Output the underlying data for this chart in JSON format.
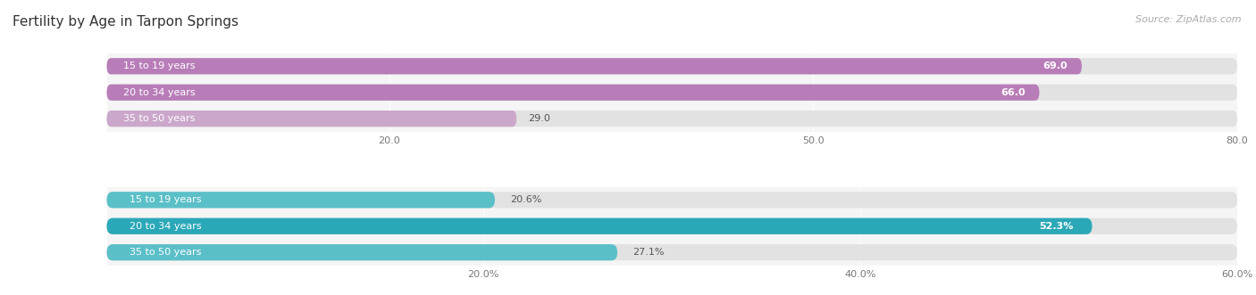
{
  "title": "Fertility by Age in Tarpon Springs",
  "source": "Source: ZipAtlas.com",
  "top_section": {
    "categories": [
      "15 to 19 years",
      "20 to 34 years",
      "35 to 50 years"
    ],
    "values": [
      69.0,
      66.0,
      29.0
    ],
    "bar_colors": [
      "#b87db8",
      "#b87db8",
      "#cba8cb"
    ],
    "xlim": [
      0,
      80
    ],
    "xticks": [
      20.0,
      50.0,
      80.0
    ],
    "value_labels": [
      "69.0",
      "66.0",
      "29.0"
    ],
    "value_inside": [
      true,
      true,
      false
    ]
  },
  "bottom_section": {
    "categories": [
      "15 to 19 years",
      "20 to 34 years",
      "35 to 50 years"
    ],
    "values": [
      20.6,
      52.3,
      27.1
    ],
    "bar_colors": [
      "#5bbfc8",
      "#2ba8b8",
      "#5bbfc8"
    ],
    "xlim": [
      0,
      60
    ],
    "xticks": [
      20.0,
      40.0,
      60.0
    ],
    "xtick_labels": [
      "20.0%",
      "40.0%",
      "60.0%"
    ],
    "value_labels": [
      "20.6%",
      "52.3%",
      "27.1%"
    ],
    "value_inside": [
      false,
      true,
      false
    ]
  },
  "bar_bg_color": "#e8e8e8",
  "fig_bg_color": "#ffffff",
  "ax_bg_color": "#f5f5f5",
  "label_fontsize": 8,
  "value_fontsize": 8,
  "tick_fontsize": 8,
  "title_fontsize": 11,
  "source_fontsize": 8
}
